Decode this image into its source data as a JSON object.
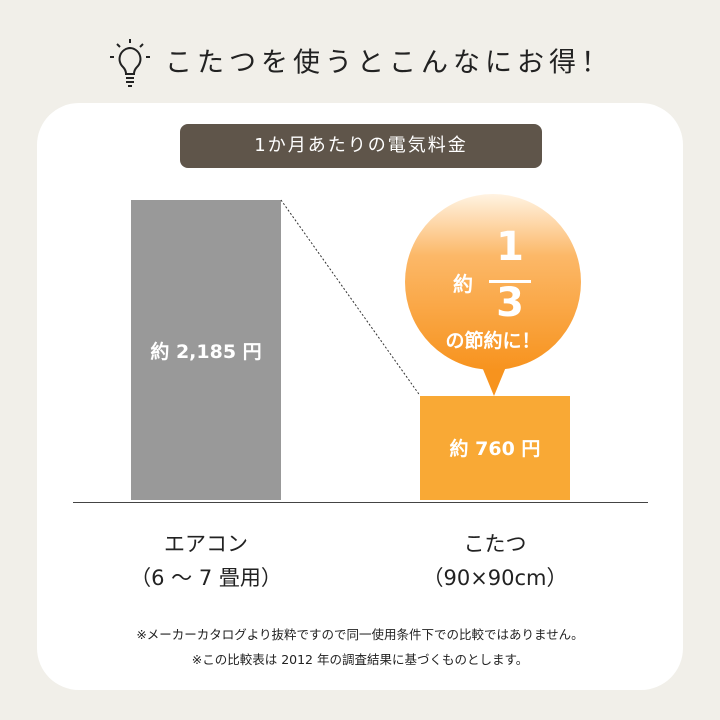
{
  "header": {
    "title": "こたつを使うとこんなにお得！",
    "icon": "lightbulb-icon"
  },
  "chart_data": {
    "type": "bar",
    "title": "1か月あたりの電気料金",
    "categories": [
      "エアコン（6 〜 7 畳用）",
      "こたつ（90×90cm）"
    ],
    "values": [
      2185,
      760
    ],
    "value_labels": [
      "約 2,185 円",
      "約 760 円"
    ],
    "colors": [
      "#999999",
      "#f9a935"
    ],
    "ylim": [
      0,
      2185
    ]
  },
  "categories": [
    {
      "line1": "エアコン",
      "line2": "（6 〜 7 畳用）"
    },
    {
      "line1": "こたつ",
      "line2": "（90×90cm）"
    }
  ],
  "callout": {
    "prefix": "約",
    "numerator": "1",
    "denominator": "3",
    "suffix": "の節約に！"
  },
  "notes": [
    "※メーカーカタログより抜粋ですので同一使用条件下での比較ではありません。",
    "※この比較表は 2012 年の調査結果に基づくものとします。"
  ]
}
